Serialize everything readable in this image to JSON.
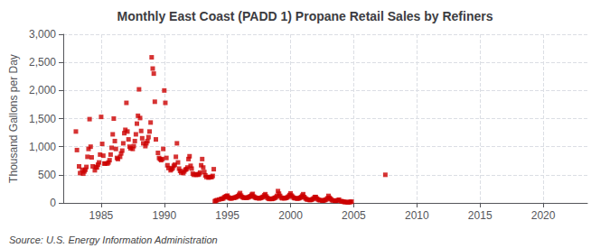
{
  "chart_data": {
    "type": "scatter",
    "title": "Monthly East Coast (PADD 1) Propane Retail Sales by Refiners",
    "ylabel": "Thousand Gallons per Day",
    "annotations": [
      "Source: U.S. Energy Information Administration"
    ],
    "color": "#cc0000",
    "marker": "square",
    "grid": true,
    "xlim": [
      1982.0,
      2023.5
    ],
    "xticks": [
      1985,
      1990,
      1995,
      2000,
      2005,
      2010,
      2015,
      2020
    ],
    "ylim": [
      0,
      3000
    ],
    "yticks": [
      0,
      500,
      {
        "value": 1000,
        "label": "1,000"
      },
      {
        "value": 1500,
        "label": "1,500"
      },
      {
        "value": 2000,
        "label": "2,000"
      },
      {
        "value": 2500,
        "label": "2,500"
      },
      {
        "value": 3000,
        "label": "3,000"
      }
    ],
    "x": [
      1983.0,
      1983.083,
      1983.25,
      1983.33,
      1983.5,
      1983.583,
      1983.67,
      1983.75,
      1983.833,
      1983.917,
      1984.0,
      1984.083,
      1984.167,
      1984.25,
      1984.333,
      1984.5,
      1984.583,
      1984.667,
      1984.75,
      1984.833,
      1984.917,
      1985.0,
      1985.083,
      1985.167,
      1985.25,
      1985.333,
      1985.5,
      1985.583,
      1985.667,
      1985.75,
      1985.833,
      1985.917,
      1986.0,
      1986.083,
      1986.167,
      1986.25,
      1986.333,
      1986.5,
      1986.583,
      1986.667,
      1986.75,
      1986.833,
      1986.917,
      1987.0,
      1987.083,
      1987.167,
      1987.25,
      1987.333,
      1987.5,
      1987.583,
      1987.667,
      1987.75,
      1987.833,
      1987.917,
      1988.0,
      1988.083,
      1988.167,
      1988.25,
      1988.333,
      1988.5,
      1988.583,
      1988.667,
      1988.75,
      1988.833,
      1988.917,
      1989.0,
      1989.083,
      1989.167,
      1989.25,
      1989.333,
      1989.5,
      1989.583,
      1989.667,
      1989.75,
      1989.833,
      1989.917,
      1990.0,
      1990.083,
      1990.167,
      1990.25,
      1990.333,
      1990.5,
      1990.583,
      1990.667,
      1990.75,
      1990.833,
      1990.917,
      1991.0,
      1991.083,
      1991.167,
      1991.25,
      1991.333,
      1991.5,
      1991.583,
      1991.667,
      1991.75,
      1991.833,
      1991.917,
      1992.0,
      1992.083,
      1992.167,
      1992.25,
      1992.333,
      1992.5,
      1992.583,
      1992.667,
      1992.75,
      1992.833,
      1992.917,
      1993.0,
      1993.083,
      1993.167,
      1993.25,
      1993.333,
      1993.5,
      1993.583,
      1993.667,
      1993.75,
      1993.833,
      1993.917,
      1994.0,
      1994.083,
      1994.167,
      1994.333,
      1994.5,
      1994.583,
      1994.667,
      1994.75,
      1994.833,
      1994.917,
      1995.0,
      1995.083,
      1995.167,
      1995.25,
      1995.333,
      1995.5,
      1995.583,
      1995.667,
      1995.75,
      1995.833,
      1995.917,
      1996.0,
      1996.083,
      1996.167,
      1996.25,
      1996.333,
      1996.5,
      1996.583,
      1996.667,
      1996.75,
      1996.833,
      1996.917,
      1997.0,
      1997.083,
      1997.167,
      1997.25,
      1997.333,
      1997.5,
      1997.583,
      1997.667,
      1997.75,
      1997.833,
      1997.917,
      1998.0,
      1998.083,
      1998.167,
      1998.25,
      1998.333,
      1998.5,
      1998.583,
      1998.667,
      1998.75,
      1998.833,
      1998.917,
      1999.0,
      1999.083,
      1999.167,
      1999.25,
      1999.333,
      1999.5,
      1999.583,
      1999.667,
      1999.75,
      1999.833,
      1999.917,
      2000.0,
      2000.083,
      2000.167,
      2000.25,
      2000.333,
      2000.5,
      2000.583,
      2000.667,
      2000.75,
      2000.833,
      2000.917,
      2001.0,
      2001.083,
      2001.167,
      2001.25,
      2001.333,
      2001.5,
      2001.583,
      2001.667,
      2001.75,
      2001.833,
      2001.917,
      2002.0,
      2002.083,
      2002.167,
      2002.25,
      2002.333,
      2002.5,
      2002.583,
      2002.667,
      2002.75,
      2002.833,
      2002.917,
      2003.0,
      2003.083,
      2003.167,
      2003.25,
      2003.333,
      2003.5,
      2003.583,
      2003.667,
      2003.75,
      2003.833,
      2004.0,
      2004.083,
      2004.167,
      2004.25,
      2004.333,
      2004.5,
      2004.583,
      2004.667,
      2004.75,
      2004.833,
      2007.5
    ],
    "values": [
      1270,
      940,
      650,
      530,
      590,
      520,
      560,
      590,
      640,
      820,
      960,
      1490,
      1000,
      810,
      650,
      580,
      640,
      630,
      680,
      720,
      860,
      1530,
      1050,
      840,
      700,
      700,
      700,
      720,
      760,
      860,
      980,
      1220,
      1500,
      1100,
      960,
      800,
      780,
      820,
      880,
      930,
      1060,
      1240,
      1300,
      1780,
      1270,
      1130,
      1000,
      970,
      960,
      1010,
      1100,
      1220,
      1410,
      1550,
      2020,
      1510,
      1280,
      1150,
      1060,
      1010,
      1060,
      1100,
      1170,
      1270,
      1430,
      2590,
      2390,
      2300,
      1800,
      1130,
      890,
      800,
      780,
      760,
      780,
      960,
      2000,
      1780,
      800,
      670,
      620,
      580,
      600,
      620,
      660,
      680,
      820,
      1060,
      720,
      610,
      570,
      540,
      530,
      560,
      590,
      600,
      630,
      780,
      830,
      660,
      610,
      520,
      500,
      500,
      510,
      500,
      510,
      540,
      670,
      780,
      630,
      550,
      490,
      460,
      450,
      460,
      460,
      460,
      480,
      600,
      30,
      40,
      50,
      60,
      70,
      75,
      80,
      100,
      110,
      120,
      130,
      100,
      85,
      80,
      80,
      90,
      95,
      100,
      110,
      120,
      145,
      175,
      130,
      105,
      95,
      90,
      90,
      95,
      100,
      110,
      120,
      145,
      160,
      115,
      100,
      90,
      85,
      80,
      85,
      90,
      100,
      110,
      135,
      155,
      115,
      90,
      75,
      70,
      70,
      75,
      80,
      90,
      100,
      125,
      210,
      165,
      125,
      95,
      82,
      82,
      85,
      90,
      100,
      115,
      140,
      170,
      130,
      110,
      90,
      82,
      78,
      78,
      82,
      90,
      105,
      130,
      155,
      105,
      82,
      68,
      58,
      52,
      52,
      58,
      68,
      82,
      105,
      105,
      78,
      62,
      52,
      47,
      42,
      42,
      47,
      52,
      63,
      82,
      125,
      92,
      72,
      52,
      42,
      38,
      38,
      42,
      47,
      58,
      32,
      26,
      22,
      18,
      14,
      12,
      12,
      14,
      18,
      22,
      500
    ]
  }
}
